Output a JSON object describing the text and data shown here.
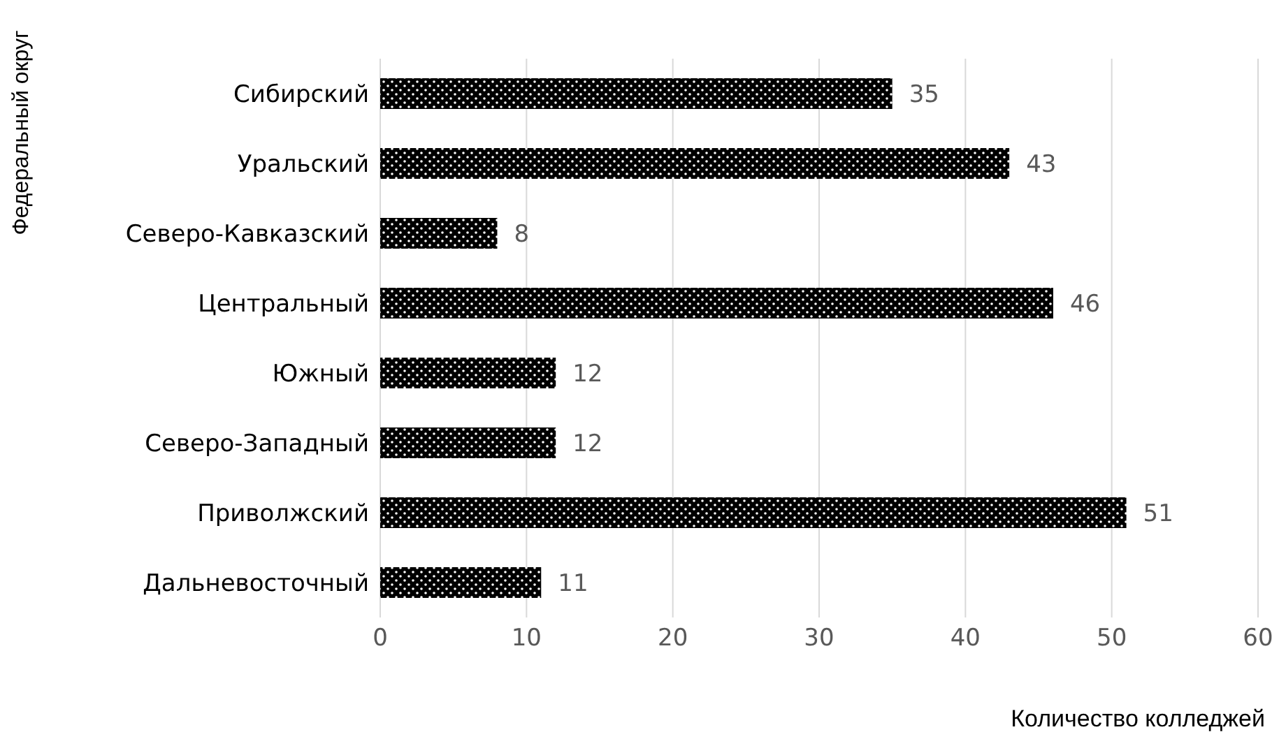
{
  "chart_data": {
    "type": "bar",
    "orientation": "horizontal",
    "ylabel": "Федеральный округ",
    "xlabel": "Количество колледжей",
    "categories": [
      "Сибирский",
      "Уральский",
      "Северо-Кавказский",
      "Центральный",
      "Южный",
      "Северо-Западный",
      "Приволжский",
      "Дальневосточный"
    ],
    "values": [
      35,
      43,
      8,
      46,
      12,
      12,
      51,
      11
    ],
    "color": "#000000",
    "xlim": [
      0,
      60
    ],
    "xticks": [
      0,
      10,
      20,
      30,
      40,
      50,
      60
    ],
    "grid": "x",
    "data_labels": true
  }
}
